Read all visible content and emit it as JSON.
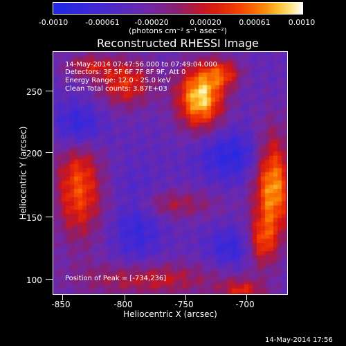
{
  "colorbar": {
    "tick_labels": [
      "-0.0010",
      "-0.00061",
      "-0.00020",
      "0.00020",
      "0.00061",
      "0.0010"
    ],
    "units_label": "(photons cm⁻² s⁻¹ asec⁻²)",
    "range": [
      -0.001,
      0.001
    ],
    "colormap": "blue-purple-red-yellow-white"
  },
  "plot": {
    "title": "Reconstructed RHESSI Image",
    "info_lines": [
      "14-May-2014 07:47:56.000 to 07:49:04.000",
      "Detectors: 3F 5F 6F 7F 8F 9F, Att 0",
      "Energy Range: 12.0 - 25.0 keV",
      "Clean     Total counts: 3.87E+03"
    ],
    "peak_label": "Position of Peak = [-734,236]",
    "peak_position": [
      -734,
      236
    ],
    "xlabel": "Heliocentric X (arcsec)",
    "ylabel": "Heliocentric Y (arcsec)",
    "x_ticks": [
      "-850",
      "-800",
      "-750",
      "-700"
    ],
    "y_ticks": [
      "100",
      "150",
      "200",
      "250"
    ],
    "x_range": [
      -860,
      -666
    ],
    "y_range": [
      89,
      290
    ]
  },
  "footer": {
    "timestamp": "14-May-2014 17:56"
  }
}
